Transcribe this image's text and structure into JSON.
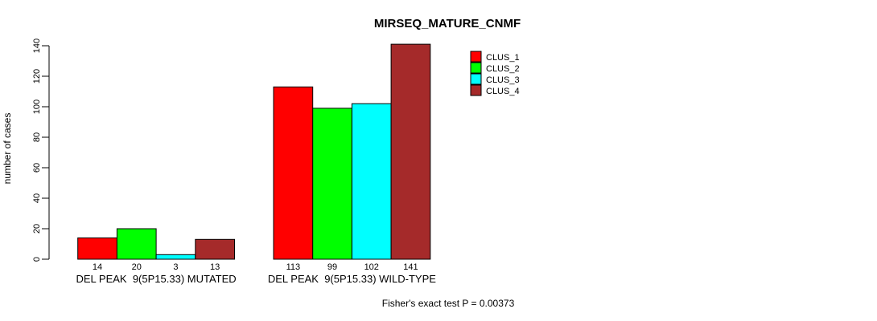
{
  "chart_data": {
    "type": "bar",
    "title": "MIRSEQ_MATURE_CNMF",
    "ylabel": "number of cases",
    "xlabel": "",
    "ylim": [
      0,
      140
    ],
    "yticks": [
      0,
      20,
      40,
      60,
      80,
      100,
      120,
      140
    ],
    "categories": [
      "DEL PEAK  9(5P15.33) MUTATED",
      "DEL PEAK  9(5P15.33) WILD-TYPE"
    ],
    "series": [
      {
        "name": "CLUS_1",
        "color": "#FF0000",
        "values": [
          14,
          113
        ]
      },
      {
        "name": "CLUS_2",
        "color": "#00FF00",
        "values": [
          20,
          99
        ]
      },
      {
        "name": "CLUS_3",
        "color": "#00FFFF",
        "values": [
          3,
          102
        ]
      },
      {
        "name": "CLUS_4",
        "color": "#A52A2A",
        "values": [
          13,
          141
        ]
      }
    ],
    "bar_value_labels": [
      [
        14,
        20,
        3,
        13
      ],
      [
        113,
        99,
        102,
        141
      ]
    ],
    "legend": {
      "position": "top-right",
      "entries": [
        "CLUS_1",
        "CLUS_2",
        "CLUS_3",
        "CLUS_4"
      ]
    },
    "annotation": "Fisher's exact test P = 0.00373",
    "grid": false,
    "bar_border_color": "#000000",
    "background": "#FFFFFF"
  }
}
